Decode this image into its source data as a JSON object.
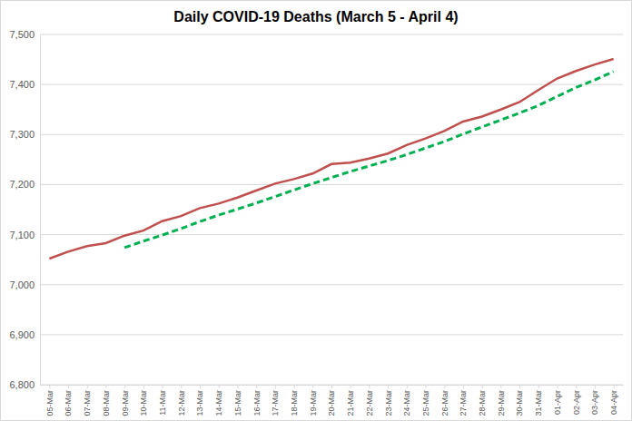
{
  "chart_data": {
    "type": "line",
    "title": "Daily COVID-19 Deaths (March 5 - April 4)",
    "categories": [
      "05-Mar",
      "06-Mar",
      "07-Mar",
      "08-Mar",
      "09-Mar",
      "10-Mar",
      "11-Mar",
      "12-Mar",
      "13-Mar",
      "14-Mar",
      "15-Mar",
      "16-Mar",
      "17-Mar",
      "18-Mar",
      "19-Mar",
      "20-Mar",
      "21-Mar",
      "22-Mar",
      "23-Mar",
      "24-Mar",
      "25-Mar",
      "26-Mar",
      "27-Mar",
      "28-Mar",
      "29-Mar",
      "30-Mar",
      "31-Mar",
      "01-Apr",
      "02-Apr",
      "03-Apr",
      "04-Apr"
    ],
    "series": [
      {
        "color": "#c0504d",
        "line_style": "solid",
        "values": [
          7052,
          7066,
          7077,
          7083,
          7098,
          7108,
          7127,
          7137,
          7153,
          7162,
          7174,
          7188,
          7202,
          7211,
          7222,
          7241,
          7244,
          7252,
          7262,
          7279,
          7292,
          7307,
          7326,
          7336,
          7350,
          7365,
          7389,
          7412,
          7427,
          7440,
          7451
        ]
      },
      {
        "color": "#00b050",
        "line_style": "dashed",
        "values": [
          null,
          null,
          null,
          null,
          7074,
          7087,
          7099,
          7112,
          7126,
          7139,
          7151,
          7163,
          7176,
          7189,
          7202,
          7214,
          7226,
          7237,
          7248,
          7260,
          7273,
          7286,
          7301,
          7315,
          7329,
          7343,
          7358,
          7376,
          7394,
          7409,
          7426
        ]
      }
    ],
    "ylim": [
      6800,
      7500
    ],
    "yticks": [
      {
        "value": 6800,
        "label": "6,800"
      },
      {
        "value": 6900,
        "label": "6,900"
      },
      {
        "value": 7000,
        "label": "7,000"
      },
      {
        "value": 7100,
        "label": "7,100"
      },
      {
        "value": 7200,
        "label": "7,200"
      },
      {
        "value": 7300,
        "label": "7,300"
      },
      {
        "value": 7400,
        "label": "7,400"
      },
      {
        "value": 7500,
        "label": "7,500"
      }
    ],
    "grid": true
  }
}
